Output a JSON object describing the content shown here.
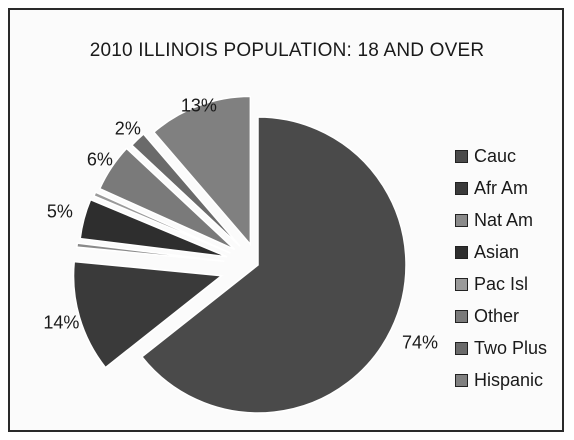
{
  "chart_data": {
    "type": "pie",
    "title": "2010 ILLINOIS POPULATION:  18 AND OVER",
    "legend_position": "right",
    "categories": [
      "Cauc",
      "Afr Am",
      "Nat Am",
      "Asian",
      "Pac Isl",
      "Other",
      "Two Plus",
      "Hispanic"
    ],
    "slices": [
      {
        "name": "Cauc",
        "value": 74,
        "label": "74%",
        "color": "#4a4a4a"
      },
      {
        "name": "Afr Am",
        "value": 14,
        "label": "14%",
        "color": "#3a3a3a"
      },
      {
        "name": "Nat Am",
        "value": 0.5,
        "label": "",
        "color": "#8a8a8a"
      },
      {
        "name": "Asian",
        "value": 5,
        "label": "5%",
        "color": "#2e2e2e"
      },
      {
        "name": "Pac Isl",
        "value": 0.5,
        "label": "",
        "color": "#9a9a9a"
      },
      {
        "name": "Other",
        "value": 6,
        "label": "6%",
        "color": "#7a7a7a"
      },
      {
        "name": "Two Plus",
        "value": 2,
        "label": "2%",
        "color": "#6a6a6a"
      },
      {
        "name": "Hispanic",
        "value": 13,
        "label": "13%",
        "color": "#808080"
      }
    ]
  }
}
